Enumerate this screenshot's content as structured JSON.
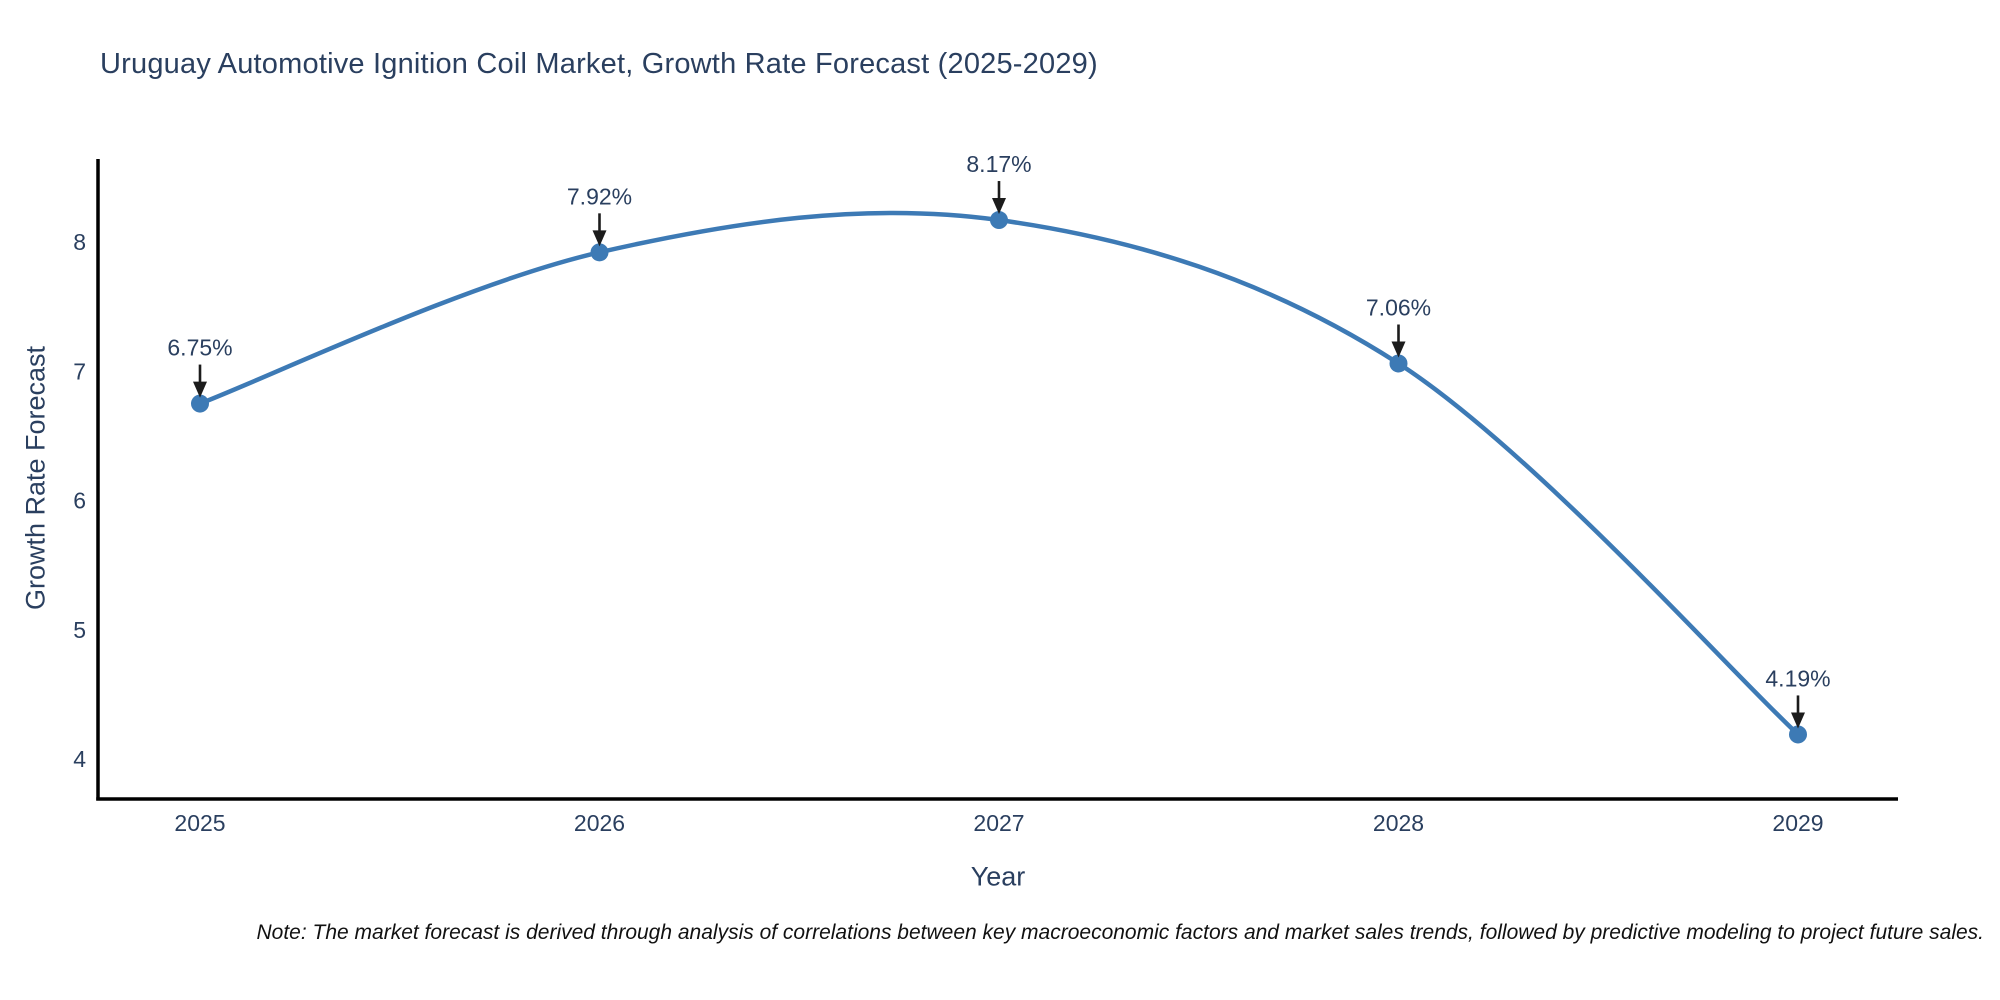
{
  "title": "Uruguay Automotive Ignition Coil Market, Growth Rate Forecast (2025-2029)",
  "note": "Note: The market forecast is derived through analysis of correlations between key macroeconomic factors and market sales trends, followed by predictive modeling to project future sales.",
  "chart_data": {
    "type": "line",
    "title": "Uruguay Automotive Ignition Coil Market, Growth Rate Forecast (2025-2029)",
    "xlabel": "Year",
    "ylabel": "Growth Rate Forecast",
    "x": [
      2025,
      2026,
      2027,
      2028,
      2029
    ],
    "values": [
      6.75,
      7.92,
      8.17,
      7.06,
      4.19
    ],
    "point_labels": [
      "6.75%",
      "7.92%",
      "8.17%",
      "7.06%",
      "4.19%"
    ],
    "y_ticks": [
      8,
      7,
      6,
      5,
      4
    ],
    "x_tick_labels": [
      "2025",
      "2026",
      "2027",
      "2028",
      "2029"
    ],
    "ylim": [
      3.69,
      8.64
    ],
    "xlim": [
      2024.74,
      2029.26
    ],
    "line_shape": "spline",
    "grid": false,
    "legend": "none",
    "colors": {
      "line": "#3d7ab5",
      "marker": "#3d7ab5",
      "text": "#2a3f5f",
      "arrow": "#1c1c1c",
      "axis": "#000000",
      "background": "#ffffff"
    }
  }
}
